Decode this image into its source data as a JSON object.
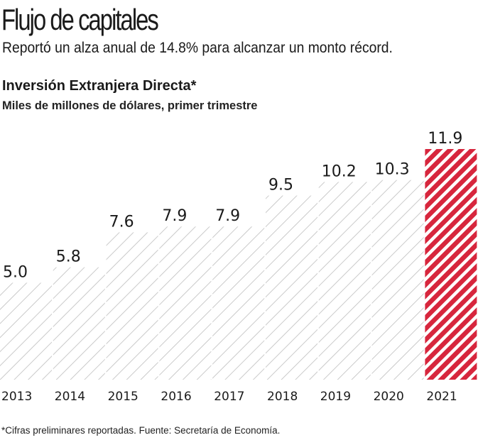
{
  "header": {
    "title": "Flujo de capitales",
    "subtitle": "Reportó un alza anual de 14.8% para alcanzar un monto récord."
  },
  "chart_data": {
    "type": "bar",
    "title": "Inversión Extranjera Directa*",
    "ylabel": "Miles de millones de dólares, primer trimestre",
    "xlabel": "",
    "categories": [
      "2013",
      "2014",
      "2015",
      "2016",
      "2017",
      "2018",
      "2019",
      "2020",
      "2021"
    ],
    "values": [
      5.0,
      5.8,
      7.6,
      7.9,
      7.9,
      9.5,
      10.2,
      10.3,
      11.9
    ],
    "value_labels": [
      "5.0",
      "5.8",
      "7.6",
      "7.9",
      "7.9",
      "9.5",
      "10.2",
      "10.3",
      "11.9"
    ],
    "highlight_index": 8,
    "colors": {
      "default": "#bdbdbd",
      "highlight": "#d7263d"
    },
    "ylim": [
      0,
      11.9
    ],
    "grid": false,
    "legend": "none"
  },
  "footer": {
    "note": "*Cifras preliminares reportadas. Fuente: Secretaría de Economía."
  }
}
